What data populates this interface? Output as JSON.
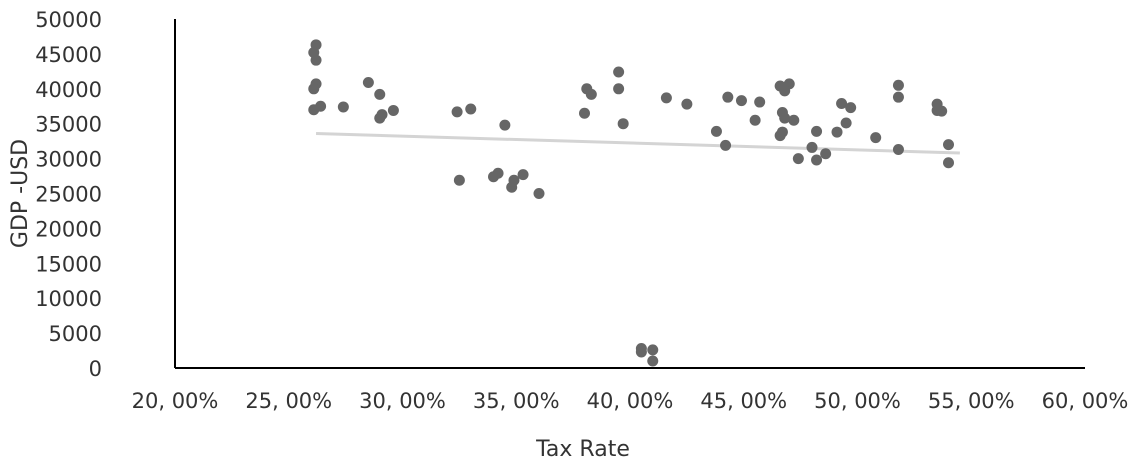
{
  "chart_data": {
    "type": "scatter",
    "title": "",
    "xlabel": "Tax Rate",
    "ylabel": "GDP -USD",
    "xlim": [
      0.2,
      0.6
    ],
    "ylim": [
      0,
      50000
    ],
    "x_ticks": [
      0.2,
      0.25,
      0.3,
      0.35,
      0.4,
      0.45,
      0.5,
      0.55,
      0.6
    ],
    "x_tick_labels": [
      "20, 00%",
      "25, 00%",
      "30, 00%",
      "35, 00%",
      "40, 00%",
      "45, 00%",
      "50, 00%",
      "55, 00%",
      "60, 00%"
    ],
    "y_ticks": [
      0,
      5000,
      10000,
      15000,
      20000,
      25000,
      30000,
      35000,
      40000,
      45000,
      50000
    ],
    "y_tick_labels": [
      "0",
      "5000",
      "10000",
      "15000",
      "20000",
      "25000",
      "30000",
      "35000",
      "40000",
      "45000",
      "50000"
    ],
    "grid": false,
    "legend": "none",
    "marker_color": "#666666",
    "trendline_color": "#d4d4d4",
    "trendline": {
      "x": [
        0.262,
        0.545
      ],
      "y": [
        33600,
        30800
      ]
    },
    "series": [
      {
        "points": [
          [
            0.262,
            46300
          ],
          [
            0.261,
            45200
          ],
          [
            0.262,
            44100
          ],
          [
            0.262,
            40700
          ],
          [
            0.261,
            40000
          ],
          [
            0.264,
            37500
          ],
          [
            0.261,
            37000
          ],
          [
            0.274,
            37400
          ],
          [
            0.285,
            40900
          ],
          [
            0.29,
            39200
          ],
          [
            0.291,
            36300
          ],
          [
            0.29,
            35800
          ],
          [
            0.296,
            36900
          ],
          [
            0.324,
            36700
          ],
          [
            0.33,
            37100
          ],
          [
            0.325,
            26900
          ],
          [
            0.345,
            34800
          ],
          [
            0.34,
            27400
          ],
          [
            0.342,
            27900
          ],
          [
            0.348,
            25900
          ],
          [
            0.349,
            26900
          ],
          [
            0.353,
            27700
          ],
          [
            0.36,
            25000
          ],
          [
            0.381,
            40000
          ],
          [
            0.383,
            39200
          ],
          [
            0.38,
            36500
          ],
          [
            0.395,
            42400
          ],
          [
            0.395,
            40000
          ],
          [
            0.397,
            35000
          ],
          [
            0.405,
            2800
          ],
          [
            0.405,
            2300
          ],
          [
            0.41,
            2600
          ],
          [
            0.41,
            1000
          ],
          [
            0.416,
            38700
          ],
          [
            0.425,
            37800
          ],
          [
            0.438,
            33900
          ],
          [
            0.443,
            38800
          ],
          [
            0.449,
            38300
          ],
          [
            0.442,
            31900
          ],
          [
            0.455,
            35500
          ],
          [
            0.457,
            38100
          ],
          [
            0.466,
            40400
          ],
          [
            0.47,
            40700
          ],
          [
            0.468,
            39700
          ],
          [
            0.467,
            36600
          ],
          [
            0.468,
            35800
          ],
          [
            0.472,
            35500
          ],
          [
            0.467,
            33800
          ],
          [
            0.466,
            33300
          ],
          [
            0.474,
            30000
          ],
          [
            0.48,
            31600
          ],
          [
            0.482,
            33900
          ],
          [
            0.482,
            29800
          ],
          [
            0.486,
            30700
          ],
          [
            0.491,
            33800
          ],
          [
            0.493,
            37900
          ],
          [
            0.495,
            35100
          ],
          [
            0.497,
            37300
          ],
          [
            0.508,
            33000
          ],
          [
            0.518,
            40500
          ],
          [
            0.518,
            38800
          ],
          [
            0.518,
            31300
          ],
          [
            0.535,
            37800
          ],
          [
            0.535,
            36900
          ],
          [
            0.537,
            36800
          ],
          [
            0.54,
            32000
          ],
          [
            0.54,
            29400
          ]
        ]
      }
    ]
  }
}
